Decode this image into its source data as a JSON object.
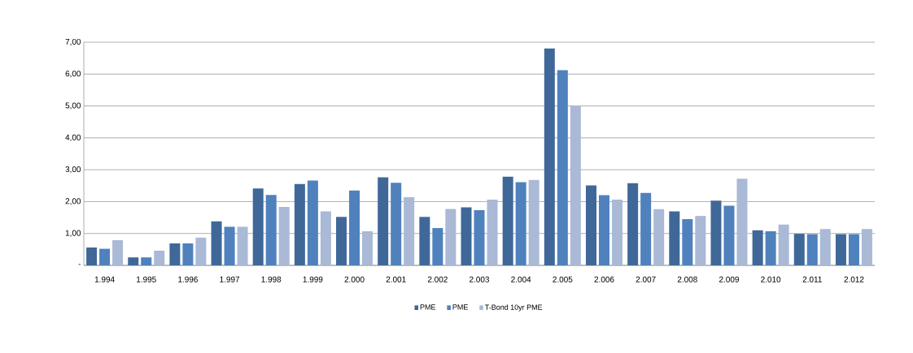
{
  "chart_data": {
    "type": "bar",
    "categories": [
      "1.994",
      "1.995",
      "1.996",
      "1.997",
      "1.998",
      "1.999",
      "2.000",
      "2.001",
      "2.002",
      "2.003",
      "2.004",
      "2.005",
      "2.006",
      "2.007",
      "2.008",
      "2.009",
      "2.010",
      "2.011",
      "2.012"
    ],
    "series": [
      {
        "name": "PME",
        "color": "#3f6899",
        "values": [
          0.56,
          0.25,
          0.69,
          1.38,
          2.41,
          2.55,
          1.52,
          2.76,
          1.52,
          1.82,
          2.78,
          6.8,
          2.51,
          2.58,
          1.69,
          2.03,
          1.1,
          0.99,
          0.98
        ]
      },
      {
        "name": "PME",
        "color": "#4f81bd",
        "values": [
          0.52,
          0.25,
          0.69,
          1.21,
          2.21,
          2.66,
          2.35,
          2.59,
          1.17,
          1.73,
          2.61,
          6.12,
          2.2,
          2.27,
          1.45,
          1.87,
          1.07,
          0.98,
          0.98
        ]
      },
      {
        "name": "T-Bond 10yr PME",
        "color": "#a9b9d6",
        "values": [
          0.79,
          0.46,
          0.87,
          1.21,
          1.83,
          1.69,
          1.07,
          2.14,
          1.77,
          2.06,
          2.68,
          5.0,
          2.06,
          1.76,
          1.55,
          2.72,
          1.28,
          1.14,
          1.14
        ]
      }
    ],
    "ylim": [
      0,
      7
    ],
    "yticks": [
      {
        "value": 0,
        "label": "-"
      },
      {
        "value": 1,
        "label": "1,00"
      },
      {
        "value": 2,
        "label": "2,00"
      },
      {
        "value": 3,
        "label": "3,00"
      },
      {
        "value": 4,
        "label": "4,00"
      },
      {
        "value": 5,
        "label": "5,00"
      },
      {
        "value": 6,
        "label": "6,00"
      },
      {
        "value": 7,
        "label": "7,00"
      }
    ],
    "grid": "y",
    "legend": "bottom"
  }
}
